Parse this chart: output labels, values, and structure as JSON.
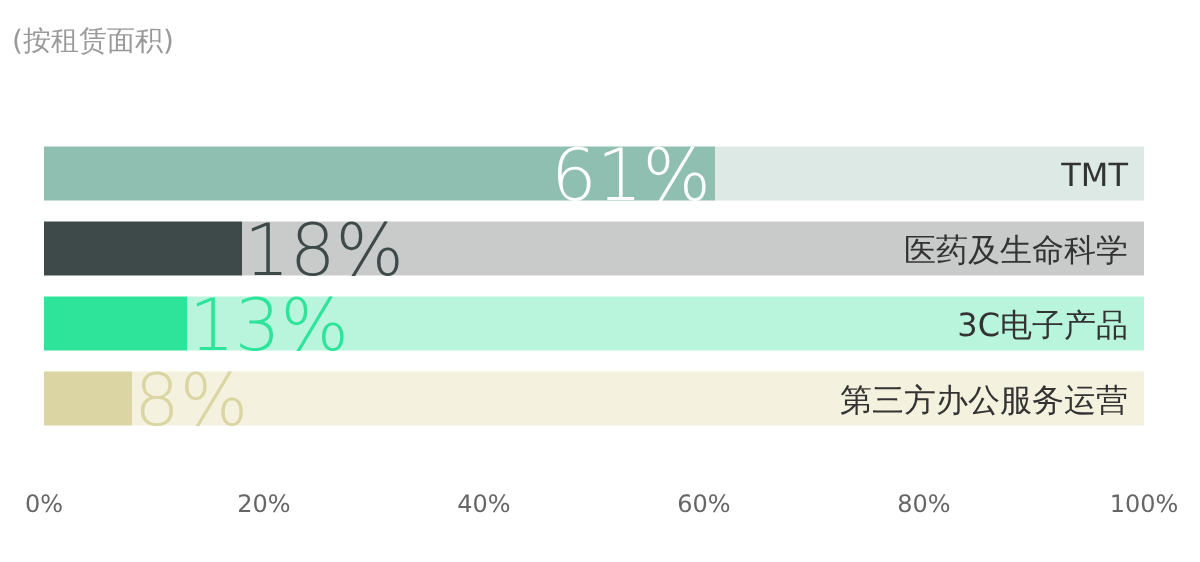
{
  "chart_data": {
    "type": "bar",
    "orientation": "horizontal",
    "stacked": true,
    "subtitle": "(按租赁面积)",
    "categories": [
      "TMT",
      "医药及生命科学",
      "3C电子产品",
      "第三方办公服务运营"
    ],
    "series": [
      {
        "colors": [
          "#8fbfb0",
          "#3e4a4a",
          "#2ee39a",
          "#dbd5a3"
        ],
        "values": [
          61,
          18,
          13,
          8
        ],
        "value_labels": [
          "61%",
          "18%",
          "13%",
          "8%"
        ]
      },
      {
        "colors": [
          "#dde9e5",
          "#c9cbca",
          "#b9f5dc",
          "#f4f1de"
        ],
        "values": [
          39,
          82,
          87,
          92
        ]
      }
    ],
    "xlim": [
      0,
      100
    ],
    "xticks": [
      {
        "value": 0,
        "label": "0%"
      },
      {
        "value": 20,
        "label": "20%"
      },
      {
        "value": 40,
        "label": "40%"
      },
      {
        "value": 60,
        "label": "60%"
      },
      {
        "value": 80,
        "label": "80%"
      },
      {
        "value": 100,
        "label": "100%"
      }
    ]
  }
}
